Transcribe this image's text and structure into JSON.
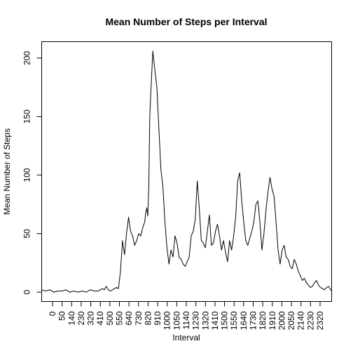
{
  "chart_data": {
    "type": "line",
    "title": "Mean Number of Steps per Interval",
    "xlabel": "Interval",
    "ylabel": "Mean Number of Steps",
    "xlim": [
      0,
      287
    ],
    "ylim": [
      -8,
      214
    ],
    "y_ticks": [
      0,
      50,
      100,
      150,
      200
    ],
    "x_tick_labels": [
      "0",
      "50",
      "140",
      "230",
      "320",
      "410",
      "500",
      "550",
      "640",
      "730",
      "820",
      "910",
      "1000",
      "1050",
      "1140",
      "1230",
      "1320",
      "1410",
      "1500",
      "1550",
      "1640",
      "1730",
      "1820",
      "1910",
      "2000",
      "2050",
      "2140",
      "2230",
      "2320"
    ],
    "grid": false,
    "legend": "none",
    "series": [
      {
        "name": "",
        "x": [
          0,
          4,
          8,
          12,
          16,
          20,
          24,
          28,
          32,
          36,
          40,
          44,
          48,
          52,
          56,
          60,
          62,
          64,
          66,
          68,
          70,
          72,
          74,
          76,
          78,
          80,
          82,
          84,
          86,
          88,
          90,
          92,
          94,
          96,
          98,
          100,
          102,
          103,
          104,
          105,
          106,
          107,
          108,
          110,
          112,
          114,
          116,
          118,
          120,
          122,
          124,
          126,
          128,
          130,
          132,
          134,
          136,
          138,
          140,
          142,
          144,
          146,
          148,
          150,
          152,
          154,
          156,
          158,
          160,
          162,
          164,
          166,
          168,
          170,
          172,
          174,
          176,
          178,
          180,
          182,
          184,
          186,
          188,
          190,
          192,
          194,
          196,
          198,
          200,
          202,
          204,
          206,
          208,
          210,
          212,
          214,
          216,
          218,
          220,
          222,
          224,
          226,
          228,
          230,
          232,
          234,
          236,
          238,
          240,
          242,
          244,
          246,
          248,
          250,
          252,
          254,
          256,
          258,
          260,
          262,
          264,
          266,
          268,
          270,
          272,
          274,
          276,
          278,
          280,
          282,
          284,
          286,
          287
        ],
        "y": [
          2,
          1,
          2,
          0,
          1,
          1,
          2,
          0,
          1,
          0,
          1,
          0,
          2,
          1,
          1,
          3,
          2,
          5,
          2,
          1,
          2,
          3,
          4,
          3,
          18,
          44,
          32,
          50,
          64,
          52,
          48,
          40,
          44,
          50,
          48,
          55,
          60,
          68,
          72,
          65,
          90,
          150,
          170,
          206,
          190,
          175,
          140,
          105,
          90,
          60,
          38,
          24,
          36,
          30,
          48,
          42,
          30,
          28,
          24,
          22,
          26,
          30,
          48,
          52,
          62,
          95,
          72,
          44,
          42,
          38,
          52,
          66,
          40,
          42,
          52,
          58,
          48,
          36,
          44,
          34,
          26,
          44,
          36,
          48,
          64,
          95,
          102,
          78,
          60,
          44,
          40,
          46,
          52,
          60,
          75,
          78,
          60,
          36,
          50,
          70,
          86,
          98,
          88,
          82,
          60,
          36,
          24,
          36,
          40,
          30,
          28,
          22,
          20,
          28,
          24,
          18,
          14,
          10,
          12,
          8,
          6,
          4,
          5,
          8,
          10,
          6,
          4,
          3,
          2,
          4,
          5,
          2,
          1
        ]
      }
    ]
  }
}
